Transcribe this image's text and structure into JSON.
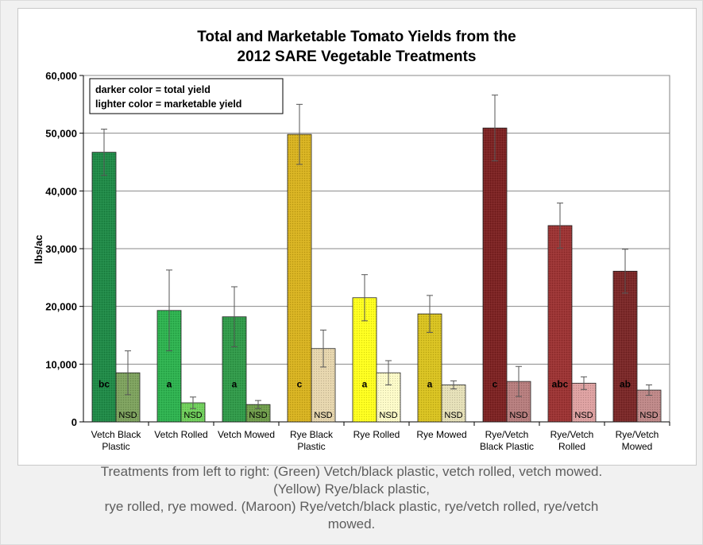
{
  "chart_data": {
    "type": "bar",
    "title_lines": [
      "Total and Marketable Tomato Yields from the",
      "2012 SARE Vegetable Treatments"
    ],
    "ylabel": "lbs/ac",
    "ylim": [
      0,
      60000
    ],
    "yticks": [
      0,
      10000,
      20000,
      30000,
      40000,
      50000,
      60000
    ],
    "ytick_labels": [
      "0",
      "10,000",
      "20,000",
      "30,000",
      "40,000",
      "50,000",
      "60,000"
    ],
    "grid": true,
    "legend_note": {
      "position": "top-left",
      "lines": [
        "darker color = total yield",
        "lighter color = marketable yield"
      ]
    },
    "categories": [
      [
        "Vetch Black",
        "Plastic"
      ],
      [
        "Vetch Rolled"
      ],
      [
        "Vetch Mowed"
      ],
      [
        "Rye Black",
        "Plastic"
      ],
      [
        "Rye Rolled"
      ],
      [
        "Rye Mowed"
      ],
      [
        "Rye/Vetch",
        "Black Plastic"
      ],
      [
        "Rye/Vetch",
        "Rolled"
      ],
      [
        "Rye/Vetch",
        "Mowed"
      ]
    ],
    "series": [
      {
        "role": "total",
        "values": [
          46700,
          19300,
          18200,
          49800,
          21500,
          18700,
          50900,
          34000,
          26100
        ],
        "error": [
          4000,
          7000,
          5200,
          5200,
          4000,
          3200,
          5700,
          3900,
          3800
        ],
        "labels": [
          "bc",
          "a",
          "a",
          "c",
          "a",
          "a",
          "c",
          "abc",
          "ab"
        ],
        "colors": [
          "#1e8a46",
          "#2cb24e",
          "#2f9a48",
          "#d8b21e",
          "#ffff1c",
          "#d9c21e",
          "#7c2121",
          "#9c3232",
          "#7a2626"
        ]
      },
      {
        "role": "marketable",
        "values": [
          8500,
          3300,
          3000,
          12700,
          8500,
          6400,
          7000,
          6700,
          5500
        ],
        "error": [
          3800,
          1000,
          700,
          3200,
          2100,
          700,
          2600,
          1100,
          900
        ],
        "labels": [
          "NSD",
          "NSD",
          "NSD",
          "NSD",
          "NSD",
          "NSD",
          "NSD",
          "NSD",
          "NSD"
        ],
        "colors": [
          "#7da25d",
          "#6fd05a",
          "#6f9e4a",
          "#e7d6ad",
          "#fdfbc8",
          "#e6e0b8",
          "#b77d7d",
          "#dea1a1",
          "#bf8888"
        ]
      }
    ]
  },
  "caption": {
    "lines": [
      "Treatments from left to right: (Green) Vetch/black plastic, vetch rolled, vetch mowed.",
      "(Yellow) Rye/black plastic,",
      "rye rolled, rye mowed. (Maroon) Rye/vetch/black plastic, rye/vetch rolled, rye/vetch",
      "mowed."
    ]
  }
}
